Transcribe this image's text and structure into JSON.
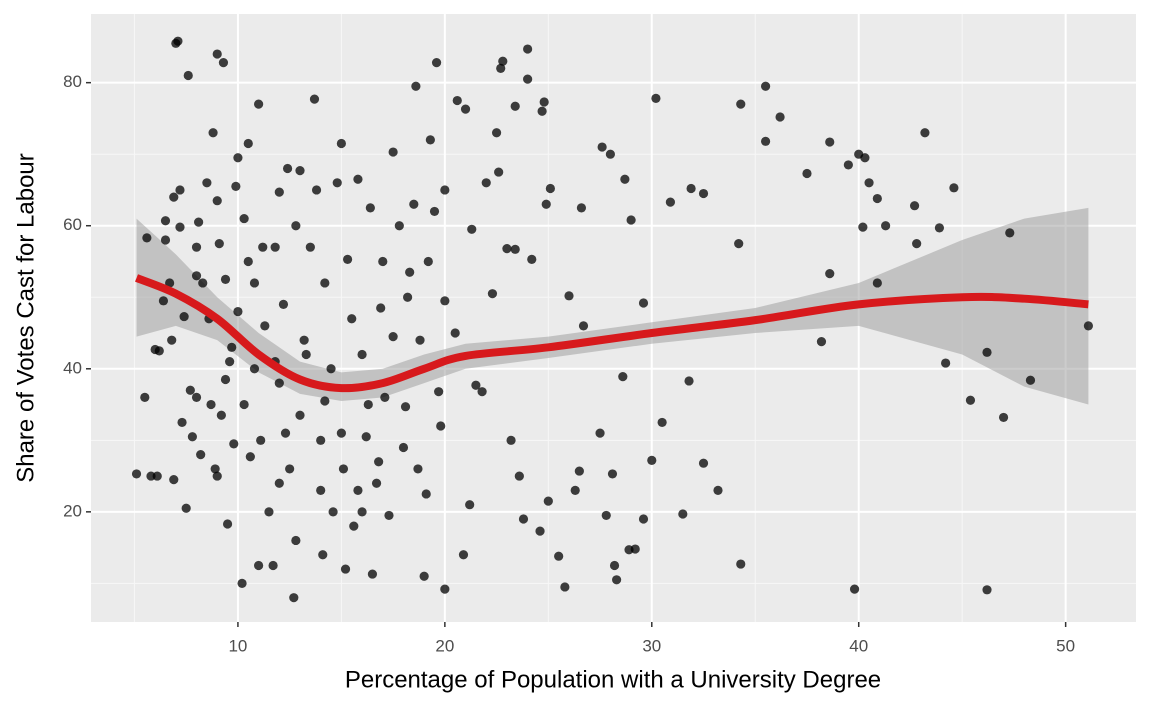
{
  "chart_data": {
    "type": "scatter",
    "xlabel": "Percentage of Population with a University Degree",
    "ylabel": "Share of Votes Cast for Labour",
    "xlim": [
      2.9,
      53.4
    ],
    "ylim": [
      4.6,
      89.6
    ],
    "xticks": [
      10,
      20,
      30,
      40,
      50
    ],
    "yticks": [
      20,
      40,
      60,
      80
    ],
    "x_minor_ticks": [
      5,
      15,
      25,
      35,
      45
    ],
    "y_minor_ticks": [
      10,
      30,
      50,
      70
    ],
    "grid": true,
    "color": "#000000",
    "x": [
      5.1,
      5.5,
      5.6,
      5.8,
      6,
      6.1,
      6.2,
      6.4,
      6.5,
      6.5,
      6.7,
      6.8,
      6.9,
      6.9,
      7,
      7.1,
      7.2,
      7.2,
      7.3,
      7.4,
      7.5,
      7.6,
      7.7,
      7.8,
      8,
      8,
      8.1,
      8.2,
      8.3,
      8.5,
      8.6,
      8.7,
      8.8,
      8.9,
      9,
      9,
      9.1,
      9.2,
      9.3,
      9.4,
      9.5,
      9.6,
      9.8,
      9.9,
      10,
      10,
      10.2,
      10.3,
      10.3,
      10.5,
      10.6,
      10.8,
      11,
      11,
      11.1,
      11.2,
      11.5,
      11.7,
      11.8,
      12,
      12,
      12.2,
      12.4,
      12.5,
      12.7,
      12.8,
      13,
      13,
      13.2,
      13.5,
      13.7,
      13.8,
      14,
      14.1,
      14.2,
      14.5,
      14.6,
      14.8,
      15,
      15.1,
      15.2,
      15.3,
      15.5,
      15.6,
      15.8,
      16,
      16.2,
      16.4,
      16.5,
      16.7,
      16.9,
      17,
      17.1,
      17.3,
      17.5,
      17.8,
      18,
      18.1,
      18.3,
      18.5,
      18.6,
      18.8,
      19,
      19.1,
      19.3,
      19.5,
      19.6,
      19.7,
      20,
      20,
      20,
      20.5,
      20.6,
      20.9,
      21,
      21.2,
      21.3,
      21.5,
      21.8,
      22,
      22.3,
      22.5,
      22.6,
      22.7,
      22.8,
      23,
      23.2,
      23.4,
      23.4,
      23.6,
      23.8,
      24,
      24,
      24.2,
      24.6,
      24.7,
      24.8,
      24.9,
      25,
      25.1,
      25.5,
      25.8,
      26,
      26.3,
      26.5,
      26.6,
      26.7,
      27.5,
      27.6,
      27.8,
      28,
      28.1,
      28.2,
      28.3,
      28.6,
      28.7,
      28.9,
      29,
      29.2,
      29.6,
      29.6,
      30,
      30.2,
      30.5,
      30.9,
      31.5,
      31.8,
      31.9,
      32.5,
      32.5,
      33.2,
      34.2,
      34.3,
      34.3,
      35.5,
      35.5,
      36.2,
      37.5,
      38.2,
      38.6,
      38.6,
      39.5,
      39.8,
      40,
      40.2,
      40.3,
      40.5,
      40.9,
      40.9,
      41.3,
      42.7,
      42.8,
      43.2,
      43.9,
      44.2,
      44.6,
      45.4,
      46.2,
      46.2,
      47,
      47.3,
      48.3,
      51.1,
      8,
      9,
      9.7,
      10.5,
      11.3,
      11.8,
      12.3,
      12.8,
      13.3,
      14.2,
      15,
      15.8,
      16.3,
      16.8,
      17.5,
      18.2,
      18.7,
      19.2,
      19.8,
      12,
      14,
      16,
      10.8,
      9.4
    ],
    "values": [
      25.3,
      36,
      58.3,
      25,
      42.7,
      25,
      42.5,
      49.5,
      58,
      60.7,
      52,
      44,
      24.5,
      64,
      85.5,
      85.8,
      65,
      59.8,
      32.5,
      47.3,
      20.5,
      81,
      37,
      30.5,
      36,
      57,
      60.5,
      28,
      52,
      66,
      47,
      35,
      73,
      26,
      84,
      25,
      57.5,
      33.5,
      82.8,
      38.5,
      18.3,
      41,
      29.5,
      65.5,
      69.5,
      48,
      10,
      35,
      61,
      71.5,
      27.7,
      52,
      77,
      12.5,
      30,
      57,
      20,
      12.5,
      41,
      64.7,
      38,
      49,
      68,
      26,
      8,
      16,
      67.7,
      33.5,
      44,
      57,
      77.7,
      65,
      30,
      14,
      52,
      40,
      20,
      66,
      71.5,
      26,
      12,
      55.3,
      47,
      18,
      66.5,
      42,
      30.5,
      62.5,
      11.3,
      24,
      48.5,
      55,
      36,
      19.5,
      70.3,
      60,
      29,
      34.7,
      53.5,
      63,
      79.5,
      44,
      11,
      22.5,
      72,
      62,
      82.8,
      36.8,
      9.2,
      49.5,
      65,
      45,
      77.5,
      14,
      76.3,
      21,
      59.5,
      37.7,
      36.8,
      66,
      50.5,
      73,
      67.5,
      82,
      83,
      56.8,
      30,
      76.7,
      56.7,
      25,
      19,
      84.7,
      80.5,
      55.3,
      17.3,
      76,
      77.3,
      63,
      21.5,
      65.2,
      13.8,
      9.5,
      50.2,
      23,
      25.7,
      62.5,
      46,
      31,
      71,
      19.5,
      70,
      25.3,
      12.5,
      10.5,
      38.9,
      66.5,
      14.7,
      60.8,
      14.8,
      49.2,
      19,
      27.2,
      77.8,
      32.5,
      63.3,
      19.7,
      38.3,
      65.2,
      26.8,
      64.5,
      23,
      57.5,
      77,
      12.7,
      79.5,
      71.8,
      75.2,
      67.3,
      43.8,
      71.7,
      53.3,
      68.5,
      9.2,
      70,
      59.8,
      69.5,
      66,
      52,
      63.8,
      60,
      62.8,
      57.5,
      73,
      59.7,
      40.8,
      65.3,
      35.6,
      42.3,
      9.1,
      33.2,
      59,
      38.4,
      46,
      53,
      63.5,
      43,
      55,
      46,
      57,
      31,
      60,
      42,
      35.5,
      31,
      23,
      35,
      27,
      44.5,
      50,
      26,
      55,
      32,
      24,
      23,
      20,
      40,
      52.5
    ],
    "smooth": {
      "color": "#d7191c",
      "band_color": "#999999",
      "x": [
        5.1,
        7,
        9,
        11,
        13,
        15,
        17,
        19,
        21,
        25,
        30,
        35,
        40,
        45,
        48,
        51.1
      ],
      "values": [
        52.7,
        50.5,
        47,
        42,
        38.5,
        37.3,
        38,
        40,
        41.8,
        43,
        45,
        46.8,
        49,
        50,
        49.8,
        49
      ],
      "lower": [
        44.5,
        46,
        44,
        39.5,
        36.5,
        35.5,
        36,
        38,
        40,
        41.5,
        43.5,
        45,
        46,
        42,
        37.5,
        35
      ],
      "upper": [
        61,
        56,
        50,
        45,
        41,
        39.5,
        40,
        42,
        43.5,
        44.5,
        46.5,
        48.5,
        52,
        58,
        61,
        62.5
      ]
    }
  }
}
